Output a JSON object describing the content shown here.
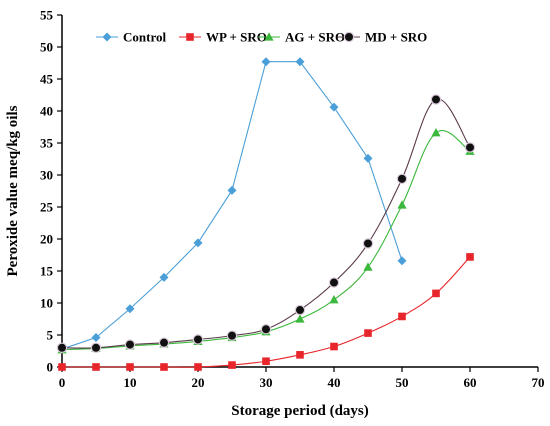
{
  "chart_data": {
    "type": "line",
    "xlabel": "Storage period (days)",
    "ylabel": "Peroxide value meq/kg oils",
    "xlim": [
      0,
      70
    ],
    "ylim": [
      0,
      55
    ],
    "x_ticks": [
      0,
      10,
      20,
      30,
      40,
      50,
      60,
      70
    ],
    "y_ticks": [
      0,
      5,
      10,
      15,
      20,
      25,
      30,
      35,
      40,
      45,
      50,
      55
    ],
    "grid": false,
    "legend_position": "top",
    "series": [
      {
        "name": "Control",
        "color": "#4a9fd8",
        "marker": "diamond",
        "x": [
          0,
          5,
          10,
          15,
          20,
          25,
          30,
          35,
          40,
          45,
          50
        ],
        "y": [
          2.8,
          4.6,
          9.1,
          14.0,
          19.4,
          27.6,
          47.7,
          47.7,
          40.6,
          32.6,
          16.6
        ]
      },
      {
        "name": "WP + SRO",
        "color": "#e8252a",
        "marker": "square",
        "x": [
          0,
          5,
          10,
          15,
          20,
          25,
          30,
          35,
          40,
          45,
          50,
          55,
          60
        ],
        "y": [
          0,
          0,
          0,
          0,
          0,
          0.3,
          0.9,
          1.9,
          3.2,
          5.3,
          7.9,
          11.5,
          17.2
        ]
      },
      {
        "name": "AG + SRO",
        "color": "#3cb83c",
        "marker": "triangle",
        "x": [
          0,
          5,
          10,
          15,
          20,
          25,
          30,
          35,
          40,
          45,
          50,
          55,
          60
        ],
        "y": [
          2.7,
          2.9,
          3.3,
          3.6,
          4.0,
          4.6,
          5.5,
          7.5,
          10.5,
          15.6,
          25.3,
          36.6,
          33.7
        ]
      },
      {
        "name": "MD + SRO",
        "color": "#5a3a4a",
        "marker": "circle",
        "x": [
          0,
          5,
          10,
          15,
          20,
          25,
          30,
          35,
          40,
          45,
          50,
          55,
          60
        ],
        "y": [
          3.0,
          3.0,
          3.5,
          3.8,
          4.3,
          4.9,
          5.9,
          8.9,
          13.2,
          19.3,
          29.4,
          41.8,
          34.3
        ]
      }
    ]
  }
}
